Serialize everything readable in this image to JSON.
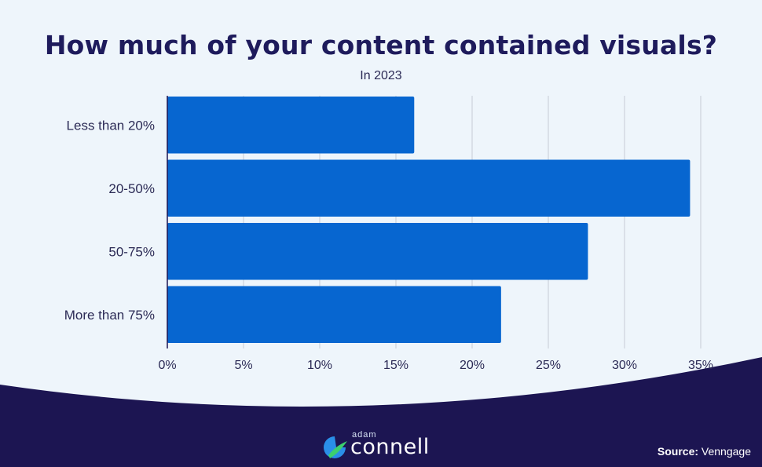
{
  "title": "How much of your content contained visuals?",
  "subtitle": "In 2023",
  "footer": {
    "logo_small": "adam",
    "logo_big": "connell",
    "source_label": "Source:",
    "source_value": "Venngage"
  },
  "colors": {
    "bar": "#0766d0",
    "background": "#eef5fb",
    "footer_band": "#1c1552",
    "title": "#1e1b5c",
    "grid": "#c5cad6"
  },
  "chart_data": {
    "type": "bar",
    "orientation": "horizontal",
    "categories": [
      "Less than 20%",
      "20-50%",
      "50-75%",
      "More than 75%"
    ],
    "values": [
      16.2,
      34.3,
      27.6,
      21.9
    ],
    "xlim": [
      0,
      35
    ],
    "xticks": [
      "0%",
      "5%",
      "10%",
      "15%",
      "20%",
      "25%",
      "30%",
      "35%"
    ],
    "grid": "vertical",
    "legend": "none",
    "xlabel": "",
    "ylabel": ""
  }
}
